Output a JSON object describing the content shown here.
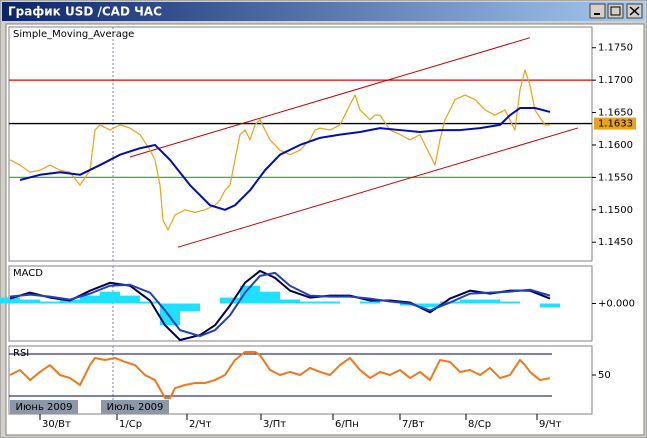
{
  "window": {
    "title": "График USD /CAD  ЧАС"
  },
  "chart_data": [
    {
      "type": "line",
      "title": "Simple_Moving_Average",
      "xlim": [
        0,
        583
      ],
      "ylim": [
        1.1421,
        1.1782
      ],
      "yticks": [
        {
          "value": 1.145,
          "label": "1.1450"
        },
        {
          "value": 1.15,
          "label": "1.1500"
        },
        {
          "value": 1.155,
          "label": "1.1550"
        },
        {
          "value": 1.16,
          "label": "1.1600"
        },
        {
          "value": 1.165,
          "label": "1.1650"
        },
        {
          "value": 1.17,
          "label": "1.1700"
        },
        {
          "value": 1.175,
          "label": "1.1750"
        }
      ],
      "series": [
        {
          "type": "line",
          "color": "#e8a317",
          "x": [
            1,
            11,
            21,
            31,
            41,
            51,
            61,
            71,
            81,
            86,
            91,
            101,
            111,
            121,
            131,
            141,
            146,
            151,
            154,
            159,
            166,
            176,
            186,
            196,
            206,
            211,
            216,
            221,
            226,
            231,
            236,
            241,
            246,
            251,
            256,
            261,
            271,
            281,
            291,
            301,
            306,
            311,
            321,
            331,
            341,
            346,
            351,
            361,
            366,
            371,
            381,
            391,
            401,
            411,
            416,
            421,
            426,
            431,
            436,
            441,
            446,
            456,
            466,
            476,
            486,
            496,
            506,
            511,
            516,
            521,
            526,
            531,
            536,
            541
          ],
          "values": [
            1.1577,
            1.1569,
            1.1558,
            1.1561,
            1.1569,
            1.1561,
            1.1558,
            1.1538,
            1.1561,
            1.1623,
            1.1631,
            1.1623,
            1.1631,
            1.1626,
            1.1616,
            1.1592,
            1.1577,
            1.1538,
            1.1484,
            1.1469,
            1.1492,
            1.15,
            1.1496,
            1.15,
            1.1507,
            1.1515,
            1.153,
            1.1538,
            1.1577,
            1.1616,
            1.1623,
            1.1608,
            1.1631,
            1.1639,
            1.1623,
            1.1608,
            1.1592,
            1.1585,
            1.1592,
            1.1608,
            1.1623,
            1.1626,
            1.1623,
            1.1631,
            1.1662,
            1.1677,
            1.1654,
            1.1639,
            1.1646,
            1.1646,
            1.1623,
            1.1616,
            1.1608,
            1.1616,
            1.16,
            1.1585,
            1.1569,
            1.1608,
            1.1639,
            1.1654,
            1.167,
            1.1677,
            1.167,
            1.1654,
            1.1646,
            1.1654,
            1.1623,
            1.1685,
            1.1716,
            1.1692,
            1.1654,
            1.1642,
            1.1631,
            1.1631
          ]
        },
        {
          "type": "line",
          "color": "#0010b0",
          "x": [
            11,
            31,
            51,
            71,
            91,
            111,
            131,
            146,
            161,
            181,
            201,
            216,
            226,
            241,
            256,
            271,
            291,
            311,
            331,
            351,
            371,
            391,
            411,
            431,
            451,
            471,
            491,
            501,
            511,
            526,
            541
          ],
          "values": [
            1.1546,
            1.1554,
            1.1558,
            1.1554,
            1.1569,
            1.1585,
            1.1595,
            1.16,
            1.1577,
            1.1538,
            1.1507,
            1.15,
            1.1507,
            1.153,
            1.1561,
            1.1585,
            1.16,
            1.1611,
            1.1616,
            1.162,
            1.1626,
            1.1623,
            1.162,
            1.1623,
            1.1623,
            1.1626,
            1.1631,
            1.1646,
            1.1657,
            1.1657,
            1.1651
          ]
        }
      ],
      "hlines": [
        {
          "value": 1.17,
          "color": "#e00000"
        },
        {
          "value": 1.1633,
          "color": "#000000"
        },
        {
          "value": 1.155,
          "color": "#20c020"
        }
      ],
      "channel": {
        "color": "#c00000",
        "lines": [
          {
            "x": [
              121,
              521
            ],
            "y": [
              1.15815,
              1.17655
            ]
          },
          {
            "x": [
              169,
              569
            ],
            "y": [
              1.14423,
              1.16263
            ]
          }
        ]
      },
      "current_price": 1.1633,
      "current_price_color": "#e8a317"
    },
    {
      "type": "macd",
      "title": "MACD",
      "xlim": [
        0,
        583
      ],
      "ylim": [
        -0.0019,
        0.0019
      ],
      "yticks": [
        {
          "value": 0,
          "label": "+0.000"
        }
      ],
      "series": [
        {
          "type": "bar",
          "color": "#20e0ff",
          "x": [
            1,
            21,
            41,
            61,
            81,
            101,
            121,
            141,
            161,
            181,
            201,
            221,
            241,
            261,
            281,
            301,
            321,
            341,
            361,
            381,
            401,
            421,
            441,
            461,
            481,
            501,
            521,
            541
          ],
          "values": [
            0.0003,
            0.0002,
            0.0001,
            0.0002,
            0.0004,
            0.0006,
            0.0004,
            0.0001,
            -0.0011,
            -0.0004,
            0,
            0.0003,
            0.0009,
            0.0006,
            0.0002,
            0.0001,
            0.0001,
            0,
            0.0001,
            0,
            -0.0001,
            -0.0002,
            0.0001,
            0.0002,
            0.0002,
            0.0001,
            0,
            -0.0002
          ]
        },
        {
          "type": "line",
          "color": "#000050",
          "x": [
            1,
            21,
            41,
            61,
            81,
            101,
            121,
            141,
            156,
            171,
            191,
            206,
            221,
            236,
            251,
            266,
            281,
            301,
            321,
            341,
            361,
            381,
            401,
            421,
            441,
            461,
            481,
            501,
            521,
            541
          ],
          "values": [
            0.00025,
            0.00055,
            0.0003,
            0.00015,
            0.00065,
            0.00105,
            0.0009,
            0.00015,
            -0.0011,
            -0.00185,
            -0.0016,
            -0.0011,
            -0.0001,
            0.00105,
            0.00165,
            0.0013,
            0.00065,
            0.0003,
            0.0004,
            0.0004,
            0.00015,
            0.00015,
            5e-05,
            -0.00045,
            0.00025,
            0.00065,
            0.0005,
            0.00065,
            0.00065,
            0.00025
          ]
        },
        {
          "type": "line",
          "color": "#2040c0",
          "x": [
            1,
            21,
            41,
            61,
            81,
            101,
            121,
            141,
            156,
            171,
            191,
            206,
            221,
            236,
            251,
            266,
            281,
            301,
            321,
            341,
            361,
            381,
            401,
            421,
            441,
            461,
            481,
            501,
            521,
            541
          ],
          "values": [
            0.00035,
            0.00045,
            0.00035,
            0.0002,
            0.0005,
            0.0009,
            0.00095,
            0.00055,
            -0.00035,
            -0.00135,
            -0.00165,
            -0.00135,
            -0.0006,
            0.00055,
            0.0014,
            0.00155,
            0.0009,
            0.0004,
            0.00035,
            0.00035,
            0.00025,
            0.0001,
            0,
            -0.00035,
            5e-05,
            0.0005,
            0.00055,
            0.0006,
            0.0007,
            0.0004
          ]
        }
      ]
    },
    {
      "type": "line",
      "title": "RSI",
      "xlim": [
        0,
        583
      ],
      "ylim": [
        12.9,
        77.6
      ],
      "yticks": [
        50
      ],
      "levels": [
        30,
        70
      ],
      "level_color": "#000060",
      "series": [
        {
          "type": "line",
          "color": "#f07818",
          "x": [
            1,
            11,
            21,
            31,
            41,
            51,
            61,
            71,
            81,
            86,
            96,
            106,
            116,
            126,
            136,
            146,
            156,
            161,
            166,
            176,
            186,
            196,
            206,
            216,
            226,
            236,
            246,
            251,
            261,
            271,
            281,
            291,
            301,
            311,
            321,
            331,
            341,
            351,
            361,
            371,
            381,
            391,
            401,
            411,
            421,
            431,
            441,
            451,
            461,
            471,
            481,
            491,
            501,
            511,
            516,
            521,
            531,
            541
          ],
          "values": [
            50,
            54.8,
            45.2,
            52.9,
            59.5,
            50,
            47.1,
            40.5,
            59.5,
            66.2,
            64.3,
            66.2,
            62.4,
            59.5,
            50,
            45.2,
            28.1,
            28.1,
            37.6,
            40.5,
            42.4,
            42.4,
            45.2,
            50,
            64.3,
            71.9,
            71.9,
            69,
            54.8,
            50,
            52.9,
            50,
            56.7,
            52.9,
            50,
            59.5,
            66.2,
            54.8,
            47.1,
            52.9,
            50,
            54.8,
            47.1,
            52.9,
            45.2,
            64.3,
            62.4,
            52.9,
            54.8,
            50,
            56.7,
            47.1,
            50,
            64.3,
            59.5,
            52.9,
            45.2,
            47.1
          ]
        }
      ],
      "xticks": [
        {
          "value": 31,
          "label": "30/Вт"
        },
        {
          "value": 108,
          "label": "1/Ср"
        },
        {
          "value": 178,
          "label": "2/Чт"
        },
        {
          "value": 252,
          "label": "3/Пт"
        },
        {
          "value": 324,
          "label": "6/Пн"
        },
        {
          "value": 391,
          "label": "7/Вт"
        },
        {
          "value": 457,
          "label": "8/Ср"
        },
        {
          "value": 528,
          "label": "9/Чт"
        }
      ],
      "period_labels": [
        "Июнь 2009",
        "Июль 2009"
      ]
    }
  ]
}
